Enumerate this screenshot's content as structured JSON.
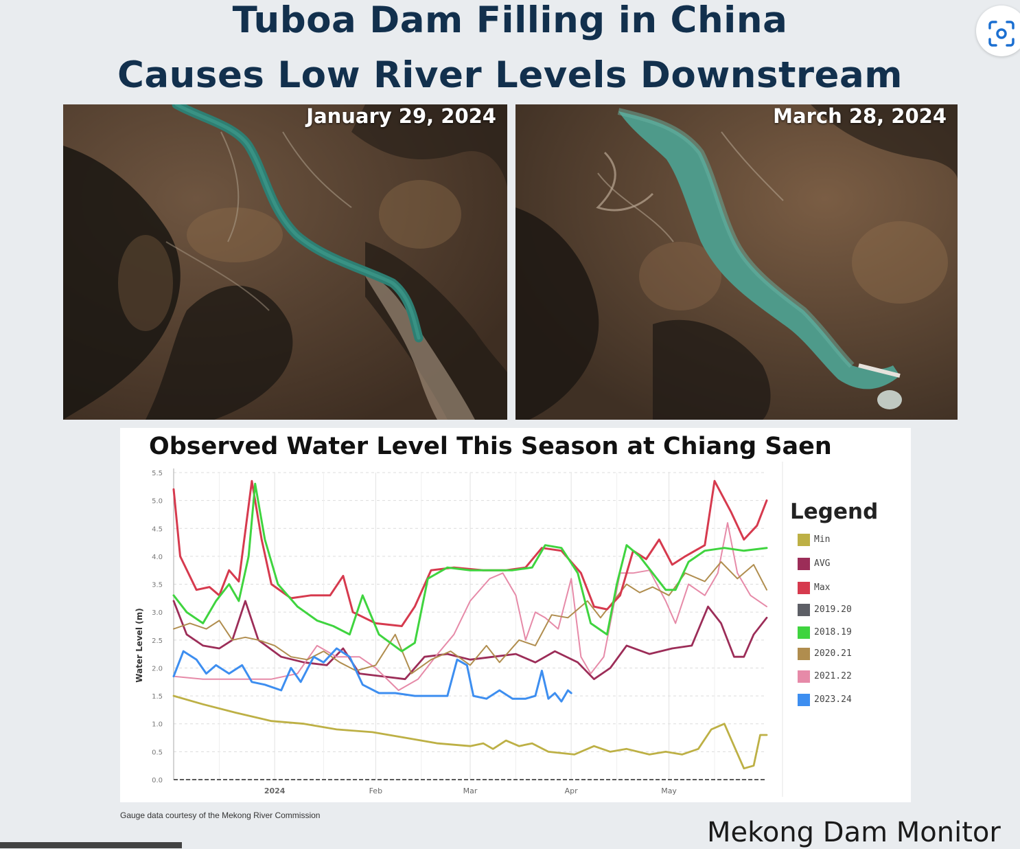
{
  "header": {
    "title_line1": "Tuboa Dam Filling in China",
    "title_line2": "Causes Low River Levels Downstream"
  },
  "toolbar": {
    "lens_icon": "visual-search-icon"
  },
  "satellite": {
    "left_date": "January 29, 2024",
    "right_date": "March 28, 2024"
  },
  "chart_data": {
    "type": "line",
    "title": "Observed Water Level This Season at Chiang Saen",
    "ylabel": "Water Level (m)",
    "xlabel": "",
    "ylim": [
      0,
      5.5
    ],
    "yticks": [
      "0.0",
      "0.5",
      "1.0",
      "1.5",
      "2.0",
      "2.5",
      "3.0",
      "3.5",
      "4.0",
      "4.5",
      "5.0",
      "5.5"
    ],
    "xlim": [
      "2023-12-01",
      "2024-05-31"
    ],
    "xticks": [
      {
        "date": "2024-01-01",
        "label": "2024"
      },
      {
        "date": "2024-02-01",
        "label": "Feb"
      },
      {
        "date": "2024-03-01",
        "label": "Mar"
      },
      {
        "date": "2024-04-01",
        "label": "Apr"
      },
      {
        "date": "2024-05-01",
        "label": "May"
      }
    ],
    "grid": true,
    "legend_title": "Legend",
    "legend_position": "right",
    "series": [
      {
        "name": "Min",
        "color": "#bdb045",
        "points": [
          [
            "2023-12-01",
            1.5
          ],
          [
            "2023-12-10",
            1.35
          ],
          [
            "2023-12-20",
            1.2
          ],
          [
            "2023-12-31",
            1.05
          ],
          [
            "2024-01-10",
            1.0
          ],
          [
            "2024-01-20",
            0.9
          ],
          [
            "2024-01-31",
            0.85
          ],
          [
            "2024-02-10",
            0.75
          ],
          [
            "2024-02-20",
            0.65
          ],
          [
            "2024-03-01",
            0.6
          ],
          [
            "2024-03-05",
            0.65
          ],
          [
            "2024-03-08",
            0.55
          ],
          [
            "2024-03-12",
            0.7
          ],
          [
            "2024-03-16",
            0.6
          ],
          [
            "2024-03-20",
            0.65
          ],
          [
            "2024-03-25",
            0.5
          ],
          [
            "2024-04-02",
            0.45
          ],
          [
            "2024-04-08",
            0.6
          ],
          [
            "2024-04-13",
            0.5
          ],
          [
            "2024-04-18",
            0.55
          ],
          [
            "2024-04-25",
            0.45
          ],
          [
            "2024-04-30",
            0.5
          ],
          [
            "2024-05-05",
            0.45
          ],
          [
            "2024-05-10",
            0.55
          ],
          [
            "2024-05-14",
            0.9
          ],
          [
            "2024-05-18",
            1.0
          ],
          [
            "2024-05-21",
            0.6
          ],
          [
            "2024-05-24",
            0.2
          ],
          [
            "2024-05-27",
            0.25
          ],
          [
            "2024-05-29",
            0.8
          ],
          [
            "2024-05-31",
            0.8
          ]
        ]
      },
      {
        "name": "AVG",
        "color": "#9c2d58",
        "points": [
          [
            "2023-12-01",
            3.2
          ],
          [
            "2023-12-05",
            2.6
          ],
          [
            "2023-12-10",
            2.4
          ],
          [
            "2023-12-15",
            2.35
          ],
          [
            "2023-12-19",
            2.5
          ],
          [
            "2023-12-23",
            3.2
          ],
          [
            "2023-12-27",
            2.5
          ],
          [
            "2024-01-03",
            2.2
          ],
          [
            "2024-01-10",
            2.1
          ],
          [
            "2024-01-17",
            2.05
          ],
          [
            "2024-01-22",
            2.35
          ],
          [
            "2024-01-27",
            1.9
          ],
          [
            "2024-02-03",
            1.85
          ],
          [
            "2024-02-10",
            1.8
          ],
          [
            "2024-02-16",
            2.2
          ],
          [
            "2024-02-23",
            2.25
          ],
          [
            "2024-03-01",
            2.15
          ],
          [
            "2024-03-08",
            2.2
          ],
          [
            "2024-03-15",
            2.25
          ],
          [
            "2024-03-21",
            2.1
          ],
          [
            "2024-03-27",
            2.3
          ],
          [
            "2024-04-03",
            2.1
          ],
          [
            "2024-04-08",
            1.8
          ],
          [
            "2024-04-13",
            2.0
          ],
          [
            "2024-04-18",
            2.4
          ],
          [
            "2024-04-25",
            2.25
          ],
          [
            "2024-05-02",
            2.35
          ],
          [
            "2024-05-08",
            2.4
          ],
          [
            "2024-05-13",
            3.1
          ],
          [
            "2024-05-17",
            2.8
          ],
          [
            "2024-05-21",
            2.2
          ],
          [
            "2024-05-24",
            2.2
          ],
          [
            "2024-05-27",
            2.6
          ],
          [
            "2024-05-31",
            2.9
          ]
        ]
      },
      {
        "name": "Max",
        "color": "#d63a4e",
        "points": [
          [
            "2023-12-01",
            5.2
          ],
          [
            "2023-12-03",
            4.0
          ],
          [
            "2023-12-08",
            3.4
          ],
          [
            "2023-12-12",
            3.45
          ],
          [
            "2023-12-15",
            3.3
          ],
          [
            "2023-12-18",
            3.75
          ],
          [
            "2023-12-21",
            3.55
          ],
          [
            "2023-12-25",
            5.35
          ],
          [
            "2023-12-28",
            4.3
          ],
          [
            "2023-12-31",
            3.5
          ],
          [
            "2024-01-06",
            3.25
          ],
          [
            "2024-01-12",
            3.3
          ],
          [
            "2024-01-18",
            3.3
          ],
          [
            "2024-01-22",
            3.65
          ],
          [
            "2024-01-25",
            3.0
          ],
          [
            "2024-02-01",
            2.8
          ],
          [
            "2024-02-09",
            2.75
          ],
          [
            "2024-02-13",
            3.1
          ],
          [
            "2024-02-18",
            3.75
          ],
          [
            "2024-02-25",
            3.8
          ],
          [
            "2024-03-05",
            3.75
          ],
          [
            "2024-03-12",
            3.75
          ],
          [
            "2024-03-18",
            3.8
          ],
          [
            "2024-03-23",
            4.15
          ],
          [
            "2024-03-29",
            4.1
          ],
          [
            "2024-04-04",
            3.7
          ],
          [
            "2024-04-08",
            3.1
          ],
          [
            "2024-04-12",
            3.05
          ],
          [
            "2024-04-16",
            3.3
          ],
          [
            "2024-04-20",
            4.1
          ],
          [
            "2024-04-24",
            3.95
          ],
          [
            "2024-04-28",
            4.3
          ],
          [
            "2024-05-02",
            3.85
          ],
          [
            "2024-05-06",
            4.0
          ],
          [
            "2024-05-12",
            4.2
          ],
          [
            "2024-05-15",
            5.35
          ],
          [
            "2024-05-20",
            4.8
          ],
          [
            "2024-05-24",
            4.3
          ],
          [
            "2024-05-28",
            4.55
          ],
          [
            "2024-05-31",
            5.0
          ]
        ]
      },
      {
        "name": "2019.20",
        "color": "#5d5f66",
        "points": []
      },
      {
        "name": "2018.19",
        "color": "#3fd43f",
        "points": [
          [
            "2023-12-01",
            3.3
          ],
          [
            "2023-12-05",
            3.0
          ],
          [
            "2023-12-10",
            2.8
          ],
          [
            "2023-12-14",
            3.2
          ],
          [
            "2023-12-18",
            3.5
          ],
          [
            "2023-12-21",
            3.2
          ],
          [
            "2023-12-24",
            4.0
          ],
          [
            "2023-12-26",
            5.3
          ],
          [
            "2023-12-29",
            4.3
          ],
          [
            "2024-01-02",
            3.5
          ],
          [
            "2024-01-08",
            3.1
          ],
          [
            "2024-01-14",
            2.85
          ],
          [
            "2024-01-19",
            2.75
          ],
          [
            "2024-01-24",
            2.6
          ],
          [
            "2024-01-28",
            3.3
          ],
          [
            "2024-02-02",
            2.6
          ],
          [
            "2024-02-09",
            2.3
          ],
          [
            "2024-02-13",
            2.45
          ],
          [
            "2024-02-17",
            3.6
          ],
          [
            "2024-02-23",
            3.8
          ],
          [
            "2024-03-01",
            3.75
          ],
          [
            "2024-03-08",
            3.75
          ],
          [
            "2024-03-14",
            3.75
          ],
          [
            "2024-03-20",
            3.8
          ],
          [
            "2024-03-24",
            4.2
          ],
          [
            "2024-03-29",
            4.15
          ],
          [
            "2024-04-03",
            3.7
          ],
          [
            "2024-04-07",
            2.8
          ],
          [
            "2024-04-12",
            2.6
          ],
          [
            "2024-04-15",
            3.5
          ],
          [
            "2024-04-18",
            4.2
          ],
          [
            "2024-04-22",
            4.0
          ],
          [
            "2024-04-26",
            3.7
          ],
          [
            "2024-04-30",
            3.4
          ],
          [
            "2024-05-03",
            3.4
          ],
          [
            "2024-05-07",
            3.9
          ],
          [
            "2024-05-12",
            4.1
          ],
          [
            "2024-05-18",
            4.15
          ],
          [
            "2024-05-24",
            4.1
          ],
          [
            "2024-05-31",
            4.15
          ]
        ]
      },
      {
        "name": "2020.21",
        "color": "#b08d4e",
        "points": [
          [
            "2023-12-01",
            2.7
          ],
          [
            "2023-12-06",
            2.8
          ],
          [
            "2023-12-11",
            2.7
          ],
          [
            "2023-12-15",
            2.85
          ],
          [
            "2023-12-19",
            2.5
          ],
          [
            "2023-12-23",
            2.55
          ],
          [
            "2023-12-27",
            2.5
          ],
          [
            "2024-01-01",
            2.4
          ],
          [
            "2024-01-06",
            2.2
          ],
          [
            "2024-01-11",
            2.15
          ],
          [
            "2024-01-16",
            2.3
          ],
          [
            "2024-01-21",
            2.1
          ],
          [
            "2024-01-26",
            1.95
          ],
          [
            "2024-02-01",
            2.05
          ],
          [
            "2024-02-07",
            2.6
          ],
          [
            "2024-02-12",
            1.9
          ],
          [
            "2024-02-18",
            2.15
          ],
          [
            "2024-02-24",
            2.3
          ],
          [
            "2024-03-01",
            2.05
          ],
          [
            "2024-03-06",
            2.4
          ],
          [
            "2024-03-10",
            2.1
          ],
          [
            "2024-03-16",
            2.5
          ],
          [
            "2024-03-21",
            2.4
          ],
          [
            "2024-03-26",
            2.95
          ],
          [
            "2024-03-31",
            2.9
          ],
          [
            "2024-04-06",
            3.2
          ],
          [
            "2024-04-10",
            2.9
          ],
          [
            "2024-04-14",
            3.2
          ],
          [
            "2024-04-18",
            3.5
          ],
          [
            "2024-04-22",
            3.35
          ],
          [
            "2024-04-26",
            3.45
          ],
          [
            "2024-05-01",
            3.3
          ],
          [
            "2024-05-06",
            3.7
          ],
          [
            "2024-05-12",
            3.55
          ],
          [
            "2024-05-17",
            3.9
          ],
          [
            "2024-05-22",
            3.6
          ],
          [
            "2024-05-27",
            3.85
          ],
          [
            "2024-05-31",
            3.4
          ]
        ]
      },
      {
        "name": "2021.22",
        "color": "#e68aa8",
        "points": [
          [
            "2023-12-01",
            1.85
          ],
          [
            "2023-12-10",
            1.8
          ],
          [
            "2023-12-20",
            1.8
          ],
          [
            "2023-12-31",
            1.8
          ],
          [
            "2024-01-08",
            1.9
          ],
          [
            "2024-01-14",
            2.4
          ],
          [
            "2024-01-20",
            2.2
          ],
          [
            "2024-01-27",
            2.2
          ],
          [
            "2024-02-01",
            2.0
          ],
          [
            "2024-02-08",
            1.6
          ],
          [
            "2024-02-14",
            1.8
          ],
          [
            "2024-02-20",
            2.25
          ],
          [
            "2024-02-25",
            2.6
          ],
          [
            "2024-03-01",
            3.2
          ],
          [
            "2024-03-07",
            3.6
          ],
          [
            "2024-03-11",
            3.7
          ],
          [
            "2024-03-15",
            3.3
          ],
          [
            "2024-03-18",
            2.5
          ],
          [
            "2024-03-21",
            3.0
          ],
          [
            "2024-03-24",
            2.9
          ],
          [
            "2024-03-28",
            2.7
          ],
          [
            "2024-04-01",
            3.6
          ],
          [
            "2024-04-04",
            2.2
          ],
          [
            "2024-04-07",
            1.9
          ],
          [
            "2024-04-11",
            2.2
          ],
          [
            "2024-04-16",
            3.7
          ],
          [
            "2024-04-20",
            3.7
          ],
          [
            "2024-04-25",
            3.75
          ],
          [
            "2024-04-30",
            3.2
          ],
          [
            "2024-05-03",
            2.8
          ],
          [
            "2024-05-07",
            3.5
          ],
          [
            "2024-05-12",
            3.3
          ],
          [
            "2024-05-16",
            3.7
          ],
          [
            "2024-05-19",
            4.6
          ],
          [
            "2024-05-22",
            3.7
          ],
          [
            "2024-05-26",
            3.3
          ],
          [
            "2024-05-31",
            3.1
          ]
        ]
      },
      {
        "name": "2023.24",
        "color": "#3d8ef0",
        "points": [
          [
            "2023-12-01",
            1.85
          ],
          [
            "2023-12-04",
            2.3
          ],
          [
            "2023-12-08",
            2.15
          ],
          [
            "2023-12-11",
            1.9
          ],
          [
            "2023-12-14",
            2.05
          ],
          [
            "2023-12-18",
            1.9
          ],
          [
            "2023-12-22",
            2.05
          ],
          [
            "2023-12-25",
            1.75
          ],
          [
            "2023-12-29",
            1.7
          ],
          [
            "2024-01-03",
            1.6
          ],
          [
            "2024-01-06",
            2.0
          ],
          [
            "2024-01-09",
            1.75
          ],
          [
            "2024-01-13",
            2.2
          ],
          [
            "2024-01-16",
            2.1
          ],
          [
            "2024-01-20",
            2.35
          ],
          [
            "2024-01-24",
            2.2
          ],
          [
            "2024-01-28",
            1.7
          ],
          [
            "2024-02-02",
            1.55
          ],
          [
            "2024-02-07",
            1.55
          ],
          [
            "2024-02-13",
            1.5
          ],
          [
            "2024-02-18",
            1.5
          ],
          [
            "2024-02-23",
            1.5
          ],
          [
            "2024-02-26",
            2.15
          ],
          [
            "2024-02-29",
            2.05
          ],
          [
            "2024-03-02",
            1.5
          ],
          [
            "2024-03-06",
            1.45
          ],
          [
            "2024-03-10",
            1.6
          ],
          [
            "2024-03-14",
            1.45
          ],
          [
            "2024-03-18",
            1.45
          ],
          [
            "2024-03-21",
            1.5
          ],
          [
            "2024-03-23",
            1.95
          ],
          [
            "2024-03-25",
            1.45
          ],
          [
            "2024-03-27",
            1.55
          ],
          [
            "2024-03-29",
            1.4
          ],
          [
            "2024-03-31",
            1.6
          ],
          [
            "2024-04-01",
            1.55
          ]
        ]
      }
    ]
  },
  "footer": {
    "credit": "Gauge data courtesy of the Mekong River Commission",
    "brand": "Mekong Dam Monitor"
  }
}
